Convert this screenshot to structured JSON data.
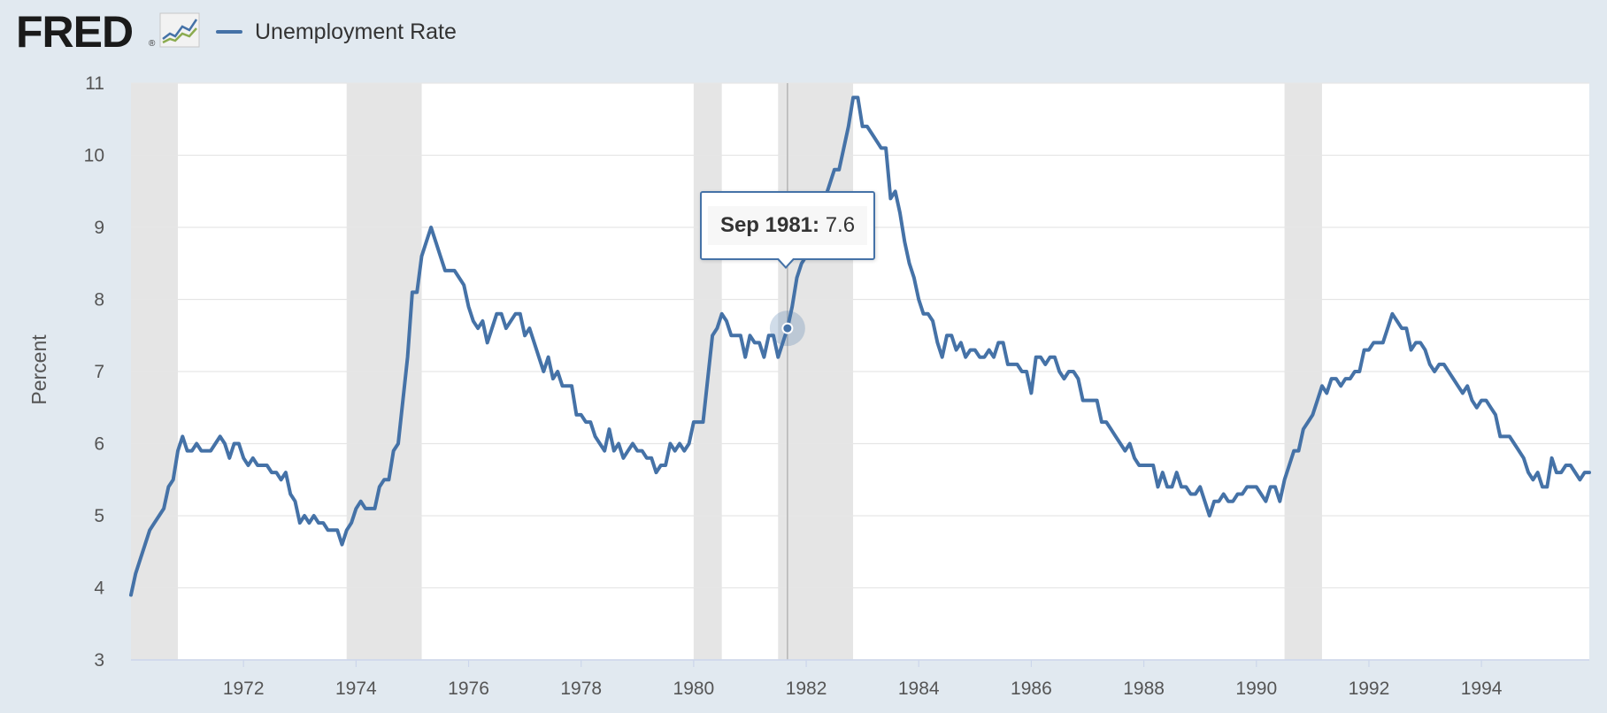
{
  "header": {
    "logo_text": "FRED",
    "logo_reg": "®",
    "logo_icon": "line-graph-icon"
  },
  "legend": {
    "label": "Unemployment Rate",
    "color": "#4572a7"
  },
  "tooltip": {
    "date": "Sep 1981:",
    "value": "7.6"
  },
  "chart_data": {
    "type": "line",
    "title": "",
    "xlabel": "",
    "ylabel": "Percent",
    "ylim": [
      3,
      11
    ],
    "xlim": [
      "1970-01",
      "1995-12"
    ],
    "yticks": [
      3,
      4,
      5,
      6,
      7,
      8,
      9,
      10,
      11
    ],
    "xticks": [
      "1972",
      "1974",
      "1976",
      "1978",
      "1980",
      "1982",
      "1984",
      "1986",
      "1988",
      "1990",
      "1992",
      "1994"
    ],
    "grid": true,
    "legend_position": "top-left",
    "series_color": "#4572a7",
    "recession_color": "#e5e5e5",
    "recessions": [
      [
        "1970-01",
        "1970-11"
      ],
      [
        "1973-11",
        "1975-03"
      ],
      [
        "1980-01",
        "1980-07"
      ],
      [
        "1981-07",
        "1982-11"
      ],
      [
        "1990-07",
        "1991-03"
      ]
    ],
    "highlight": {
      "date": "1981-09",
      "value": 7.6
    },
    "series": [
      {
        "name": "Unemployment Rate",
        "start": "1970-01",
        "values": [
          3.9,
          4.2,
          4.4,
          4.6,
          4.8,
          4.9,
          5.0,
          5.1,
          5.4,
          5.5,
          5.9,
          6.1,
          5.9,
          5.9,
          6.0,
          5.9,
          5.9,
          5.9,
          6.0,
          6.1,
          6.0,
          5.8,
          6.0,
          6.0,
          5.8,
          5.7,
          5.8,
          5.7,
          5.7,
          5.7,
          5.6,
          5.6,
          5.5,
          5.6,
          5.3,
          5.2,
          4.9,
          5.0,
          4.9,
          5.0,
          4.9,
          4.9,
          4.8,
          4.8,
          4.8,
          4.6,
          4.8,
          4.9,
          5.1,
          5.2,
          5.1,
          5.1,
          5.1,
          5.4,
          5.5,
          5.5,
          5.9,
          6.0,
          6.6,
          7.2,
          8.1,
          8.1,
          8.6,
          8.8,
          9.0,
          8.8,
          8.6,
          8.4,
          8.4,
          8.4,
          8.3,
          8.2,
          7.9,
          7.7,
          7.6,
          7.7,
          7.4,
          7.6,
          7.8,
          7.8,
          7.6,
          7.7,
          7.8,
          7.8,
          7.5,
          7.6,
          7.4,
          7.2,
          7.0,
          7.2,
          6.9,
          7.0,
          6.8,
          6.8,
          6.8,
          6.4,
          6.4,
          6.3,
          6.3,
          6.1,
          6.0,
          5.9,
          6.2,
          5.9,
          6.0,
          5.8,
          5.9,
          6.0,
          5.9,
          5.9,
          5.8,
          5.8,
          5.6,
          5.7,
          5.7,
          6.0,
          5.9,
          6.0,
          5.9,
          6.0,
          6.3,
          6.3,
          6.3,
          6.9,
          7.5,
          7.6,
          7.8,
          7.7,
          7.5,
          7.5,
          7.5,
          7.2,
          7.5,
          7.4,
          7.4,
          7.2,
          7.5,
          7.5,
          7.2,
          7.4,
          7.6,
          7.9,
          8.3,
          8.5,
          8.6,
          8.9,
          9.0,
          9.3,
          9.4,
          9.6,
          9.8,
          9.8,
          10.1,
          10.4,
          10.8,
          10.8,
          10.4,
          10.4,
          10.3,
          10.2,
          10.1,
          10.1,
          9.4,
          9.5,
          9.2,
          8.8,
          8.5,
          8.3,
          8.0,
          7.8,
          7.8,
          7.7,
          7.4,
          7.2,
          7.5,
          7.5,
          7.3,
          7.4,
          7.2,
          7.3,
          7.3,
          7.2,
          7.2,
          7.3,
          7.2,
          7.4,
          7.4,
          7.1,
          7.1,
          7.1,
          7.0,
          7.0,
          6.7,
          7.2,
          7.2,
          7.1,
          7.2,
          7.2,
          7.0,
          6.9,
          7.0,
          7.0,
          6.9,
          6.6,
          6.6,
          6.6,
          6.6,
          6.3,
          6.3,
          6.2,
          6.1,
          6.0,
          5.9,
          6.0,
          5.8,
          5.7,
          5.7,
          5.7,
          5.7,
          5.4,
          5.6,
          5.4,
          5.4,
          5.6,
          5.4,
          5.4,
          5.3,
          5.3,
          5.4,
          5.2,
          5.0,
          5.2,
          5.2,
          5.3,
          5.2,
          5.2,
          5.3,
          5.3,
          5.4,
          5.4,
          5.4,
          5.3,
          5.2,
          5.4,
          5.4,
          5.2,
          5.5,
          5.7,
          5.9,
          5.9,
          6.2,
          6.3,
          6.4,
          6.6,
          6.8,
          6.7,
          6.9,
          6.9,
          6.8,
          6.9,
          6.9,
          7.0,
          7.0,
          7.3,
          7.3,
          7.4,
          7.4,
          7.4,
          7.6,
          7.8,
          7.7,
          7.6,
          7.6,
          7.3,
          7.4,
          7.4,
          7.3,
          7.1,
          7.0,
          7.1,
          7.1,
          7.0,
          6.9,
          6.8,
          6.7,
          6.8,
          6.6,
          6.5,
          6.6,
          6.6,
          6.5,
          6.4,
          6.1,
          6.1,
          6.1,
          6.0,
          5.9,
          5.8,
          5.6,
          5.5,
          5.6,
          5.4,
          5.4,
          5.8,
          5.6,
          5.6,
          5.7,
          5.7,
          5.6,
          5.5,
          5.6,
          5.6
        ]
      }
    ]
  }
}
